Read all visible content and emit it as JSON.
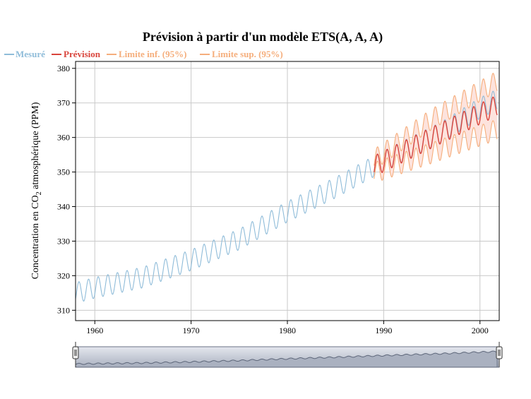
{
  "chart_data": {
    "type": "line",
    "title": "Prévision à partir d'un modèle ETS(A, A, A)",
    "xlabel": "",
    "ylabel": {
      "prefix": "Concentration en CO",
      "subscript": "2",
      "suffix": " atmosphérique (PPM)"
    },
    "xlim": [
      1958,
      2002
    ],
    "ylim": [
      307,
      382
    ],
    "x_ticks": [
      1960,
      1970,
      1980,
      1990,
      2000
    ],
    "y_ticks": [
      310,
      320,
      330,
      340,
      350,
      360,
      370,
      380
    ],
    "grid": true,
    "legend_position": "top-left",
    "seasonal_amplitude": 3,
    "series": [
      {
        "name": "Mesuré",
        "color": "#8fbcd9",
        "x_trend": [
          1958.0,
          1960,
          1965,
          1970,
          1975,
          1980,
          1985,
          1988.9,
          1992,
          1996,
          2000,
          2001.8
        ],
        "y_trend": [
          315.0,
          316.5,
          319.5,
          324.5,
          330.5,
          338.5,
          345.5,
          351.5,
          356.0,
          361.5,
          368.5,
          371.0
        ]
      },
      {
        "name": "Prévision",
        "color": "#d9443b",
        "x_trend": [
          1989.0,
          2001.8
        ],
        "y_trend": [
          351.7,
          369.3
        ]
      },
      {
        "name": "Limite inf. (95%)",
        "color": "#f5ae7c",
        "x_trend": [
          1989.0,
          1995,
          2001.8
        ],
        "y_trend": [
          349.8,
          355.5,
          362.3
        ]
      },
      {
        "name": "Limite sup. (95%)",
        "color": "#f5ae7c",
        "x_trend": [
          1989.0,
          1995,
          2001.8
        ],
        "y_trend": [
          353.6,
          365.3,
          376.3
        ]
      }
    ]
  },
  "colors": {
    "band_fill": "#fde3dd",
    "grid": "#c9c9c9",
    "navigator_fill": "#c5cbd6"
  },
  "navigator": {
    "handle_left": "drag-handle-icon",
    "handle_right": "drag-handle-icon"
  }
}
